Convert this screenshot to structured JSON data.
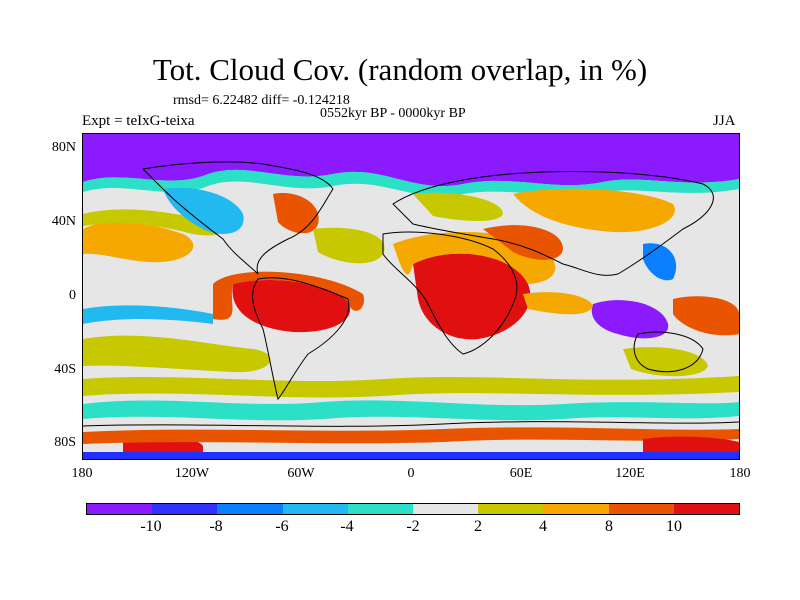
{
  "title": "Tot. Cloud Cov. (random overlap, in %)",
  "stats": "rmsd= 6.22482 diff= -0.124218",
  "period": "0552kyr BP - 0000kyr BP",
  "experiment": "Expt = teIxG-teixa",
  "season": "JJA",
  "lat_labels": [
    "80N",
    "40N",
    "0",
    "40S",
    "80S"
  ],
  "lon_labels": [
    "180",
    "120W",
    "60W",
    "0",
    "60E",
    "120E",
    "180"
  ],
  "colorbar": {
    "labels": [
      "-10",
      "-8",
      "-6",
      "-4",
      "-2",
      "2",
      "4",
      "8",
      "10"
    ],
    "colors": [
      "#8b1aff",
      "#3030ff",
      "#0a7fff",
      "#22b8f0",
      "#2ce0c8",
      "#e6e6e6",
      "#c8c800",
      "#f5a800",
      "#e85400",
      "#e01010"
    ]
  },
  "map_data": {
    "type": "filled-contour-map",
    "variable": "Total cloud cover difference (%)",
    "lon_range": [
      -180,
      180
    ],
    "lat_range": [
      -90,
      90
    ],
    "features": [
      {
        "region": "Arctic",
        "level": "-10"
      },
      {
        "region": "tropical South America",
        "level": "10"
      },
      {
        "region": "central Africa",
        "level": "10"
      },
      {
        "region": "Arabia / NE Africa",
        "level": "8"
      },
      {
        "region": "Maritime Continent",
        "level": "-10"
      },
      {
        "region": "Siberia",
        "level": "4"
      },
      {
        "region": "Southern Ocean near 80S",
        "level": "10"
      }
    ]
  }
}
